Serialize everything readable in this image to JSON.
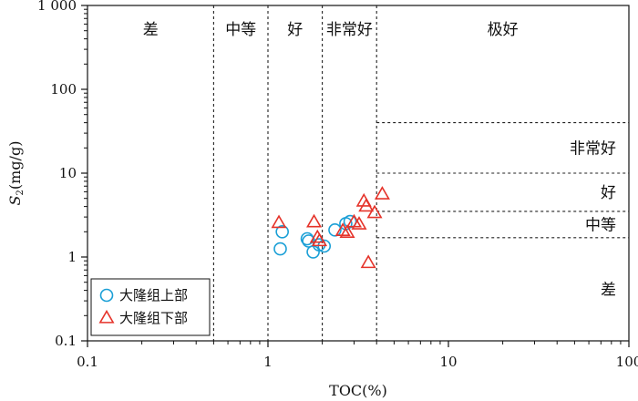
{
  "chart_data": {
    "type": "scatter",
    "xscale": "log",
    "yscale": "log",
    "xlim": [
      0.1,
      100
    ],
    "ylim": [
      0.1,
      1000
    ],
    "xlabel": "TOC(%)",
    "ylabel_main": "S",
    "ylabel_sub": "2",
    "ylabel_unit": "(mg/g)",
    "x_ticks": [
      "0.1",
      "1",
      "10",
      "100"
    ],
    "y_ticks": [
      "0.1",
      "1",
      "10",
      "100",
      "1 000"
    ],
    "toc_thresholds": [
      0.5,
      1.0,
      2.0,
      4.0
    ],
    "s2_thresholds": [
      1.7,
      3.5,
      10,
      40
    ],
    "toc_zone_labels": [
      "差",
      "中等",
      "好",
      "非常好",
      "极好"
    ],
    "s2_zone_labels": [
      "差",
      "中等",
      "好",
      "非常好"
    ],
    "legend_position": "bottom-left",
    "series": [
      {
        "name": "大隆组上部",
        "marker": "circle",
        "color": "#1a9fd6",
        "points": [
          [
            1.2,
            2.0
          ],
          [
            1.17,
            1.25
          ],
          [
            1.65,
            1.65
          ],
          [
            1.68,
            1.55
          ],
          [
            1.78,
            1.15
          ],
          [
            1.92,
            1.4
          ],
          [
            2.05,
            1.35
          ],
          [
            2.35,
            2.1
          ],
          [
            2.7,
            2.5
          ],
          [
            2.85,
            2.65
          ]
        ]
      },
      {
        "name": "大隆组下部",
        "marker": "triangle",
        "color": "#e5332a",
        "points": [
          [
            1.15,
            2.55
          ],
          [
            1.8,
            2.6
          ],
          [
            1.88,
            1.7
          ],
          [
            1.93,
            1.55
          ],
          [
            2.6,
            2.05
          ],
          [
            2.75,
            1.95
          ],
          [
            3.0,
            2.6
          ],
          [
            3.2,
            2.45
          ],
          [
            3.4,
            4.6
          ],
          [
            3.5,
            4.0
          ],
          [
            3.9,
            3.35
          ],
          [
            4.3,
            5.6
          ],
          [
            3.6,
            0.85
          ]
        ]
      }
    ]
  }
}
